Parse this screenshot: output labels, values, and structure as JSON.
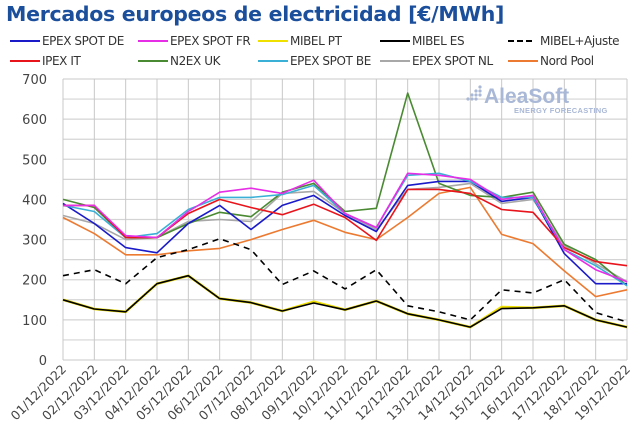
{
  "chart_data": {
    "type": "line",
    "title": "Mercados europeos de electricidad [€/MWh]",
    "xlabel": "",
    "ylabel": "",
    "ylim": [
      0,
      700
    ],
    "yticks": [
      0,
      100,
      200,
      300,
      400,
      500,
      600,
      700
    ],
    "grid": true,
    "legend_position": "top",
    "watermark": {
      "brand": "AleaSoft",
      "tagline": "ENERGY FORECASTING"
    },
    "x": [
      "01/12/2022",
      "02/12/2022",
      "03/12/2022",
      "04/12/2022",
      "05/12/2022",
      "06/12/2022",
      "07/12/2022",
      "08/12/2022",
      "09/12/2022",
      "10/12/2022",
      "11/12/2022",
      "12/12/2022",
      "13/12/2022",
      "14/12/2022",
      "15/12/2022",
      "16/12/2022",
      "17/12/2022",
      "18/12/2022",
      "19/12/2022"
    ],
    "series": [
      {
        "name": "EPEX SPOT DE",
        "color": "#1a1ac8",
        "dash": false,
        "values": [
          390,
          340,
          280,
          267,
          340,
          385,
          325,
          385,
          410,
          360,
          320,
          435,
          445,
          445,
          395,
          405,
          265,
          190,
          190
        ]
      },
      {
        "name": "EPEX SPOT FR",
        "color": "#e62ee6",
        "dash": false,
        "values": [
          385,
          385,
          310,
          305,
          370,
          418,
          428,
          415,
          448,
          365,
          330,
          465,
          460,
          450,
          400,
          410,
          275,
          225,
          195
        ]
      },
      {
        "name": "MIBEL PT",
        "color": "#f0e000",
        "dash": false,
        "values": [
          150,
          127,
          120,
          190,
          210,
          153,
          143,
          122,
          145,
          125,
          147,
          115,
          100,
          82,
          132,
          130,
          135,
          100,
          82
        ]
      },
      {
        "name": "MIBEL ES",
        "color": "#000000",
        "dash": false,
        "values": [
          150,
          127,
          120,
          190,
          210,
          153,
          143,
          122,
          142,
          125,
          147,
          115,
          100,
          82,
          128,
          130,
          135,
          100,
          82
        ]
      },
      {
        "name": "MIBEL+Ajuste",
        "color": "#000000",
        "dash": true,
        "values": [
          210,
          225,
          190,
          255,
          275,
          302,
          275,
          188,
          222,
          177,
          225,
          135,
          120,
          100,
          175,
          167,
          200,
          118,
          95
        ]
      },
      {
        "name": "IPEX IT",
        "color": "#e8141c",
        "dash": false,
        "values": [
          385,
          385,
          305,
          305,
          365,
          400,
          380,
          362,
          388,
          355,
          298,
          425,
          425,
          415,
          375,
          368,
          280,
          245,
          235
        ]
      },
      {
        "name": "N2EX UK",
        "color": "#4a8a32",
        "dash": false,
        "values": [
          400,
          380,
          305,
          305,
          340,
          368,
          357,
          418,
          440,
          370,
          378,
          665,
          440,
          410,
          405,
          418,
          288,
          250,
          185
        ]
      },
      {
        "name": "EPEX SPOT BE",
        "color": "#3ab0d6",
        "dash": false,
        "values": [
          385,
          370,
          305,
          315,
          375,
          405,
          405,
          412,
          435,
          365,
          330,
          460,
          465,
          445,
          405,
          405,
          275,
          235,
          185
        ]
      },
      {
        "name": "EPEX SPOT NL",
        "color": "#a8a8a8",
        "dash": false,
        "values": [
          360,
          340,
          300,
          305,
          345,
          350,
          345,
          415,
          420,
          365,
          325,
          425,
          430,
          440,
          390,
          400,
          285,
          240,
          195
        ]
      },
      {
        "name": "Nord Pool",
        "color": "#ec7a30",
        "dash": false,
        "values": [
          355,
          315,
          262,
          262,
          272,
          278,
          300,
          325,
          348,
          318,
          300,
          355,
          415,
          430,
          313,
          290,
          222,
          158,
          175
        ]
      }
    ]
  }
}
